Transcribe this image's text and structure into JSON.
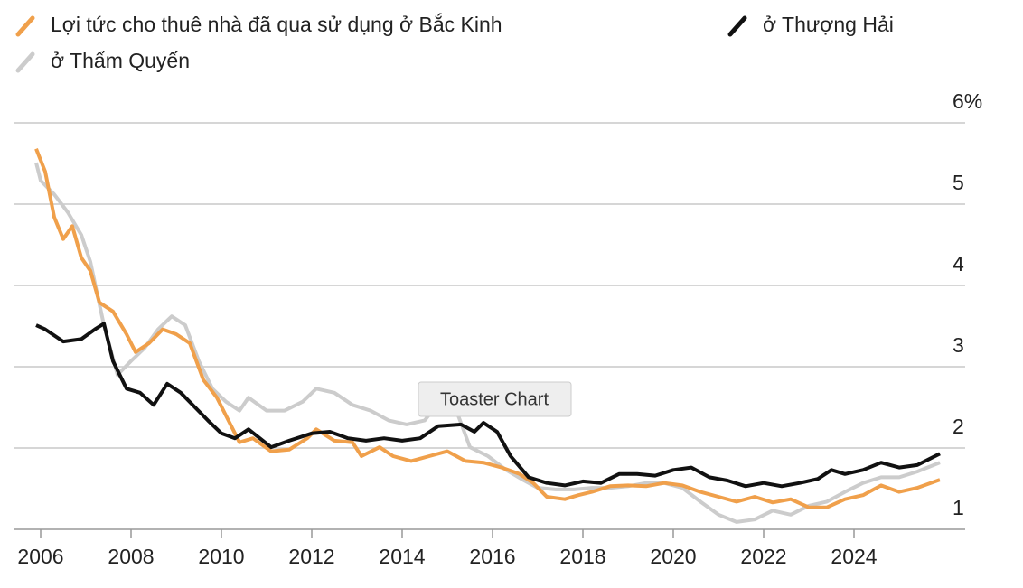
{
  "chart_data": {
    "type": "line",
    "series": [
      {
        "name": "Lợi tức cho thuê nhà đã qua sử dụng ở Bắc Kinh",
        "color": "#f0a04b",
        "x": [
          2005.9,
          2006.1,
          2006.3,
          2006.5,
          2006.7,
          2006.9,
          2007.1,
          2007.3,
          2007.6,
          2007.9,
          2008.1,
          2008.4,
          2008.7,
          2009.0,
          2009.3,
          2009.6,
          2009.9,
          2010.2,
          2010.4,
          2010.7,
          2011.1,
          2011.5,
          2011.9,
          2012.1,
          2012.5,
          2012.9,
          2013.1,
          2013.5,
          2013.8,
          2014.2,
          2014.6,
          2015.0,
          2015.4,
          2015.8,
          2016.2,
          2016.6,
          2016.9,
          2017.2,
          2017.6,
          2017.9,
          2018.2,
          2018.6,
          2019.0,
          2019.4,
          2019.8,
          2020.2,
          2020.6,
          2021.0,
          2021.4,
          2021.8,
          2022.2,
          2022.6,
          2023.0,
          2023.4,
          2023.8,
          2024.2,
          2024.6,
          2025.0,
          2025.4,
          2025.9
        ],
        "values": [
          5.68,
          5.4,
          4.84,
          4.57,
          4.73,
          4.34,
          4.18,
          3.79,
          3.68,
          3.4,
          3.18,
          3.29,
          3.46,
          3.4,
          3.29,
          2.84,
          2.62,
          2.29,
          2.07,
          2.12,
          1.96,
          1.98,
          2.12,
          2.23,
          2.09,
          2.07,
          1.9,
          2.01,
          1.9,
          1.84,
          1.9,
          1.96,
          1.84,
          1.82,
          1.76,
          1.68,
          1.57,
          1.4,
          1.37,
          1.42,
          1.46,
          1.53,
          1.54,
          1.53,
          1.57,
          1.54,
          1.46,
          1.4,
          1.34,
          1.4,
          1.33,
          1.37,
          1.27,
          1.27,
          1.37,
          1.42,
          1.54,
          1.46,
          1.51,
          1.61
        ]
      },
      {
        "name": "ở Thượng Hải",
        "color": "#111111",
        "x": [
          2005.9,
          2006.1,
          2006.5,
          2006.9,
          2007.2,
          2007.4,
          2007.6,
          2007.9,
          2008.2,
          2008.5,
          2008.8,
          2009.1,
          2009.4,
          2009.7,
          2010.0,
          2010.3,
          2010.6,
          2011.1,
          2011.5,
          2012.0,
          2012.4,
          2012.8,
          2013.2,
          2013.6,
          2014.0,
          2014.4,
          2014.8,
          2015.3,
          2015.6,
          2015.8,
          2016.1,
          2016.4,
          2016.8,
          2017.2,
          2017.6,
          2018.0,
          2018.4,
          2018.8,
          2019.2,
          2019.6,
          2020.0,
          2020.4,
          2020.8,
          2021.2,
          2021.6,
          2022.0,
          2022.4,
          2022.8,
          2023.2,
          2023.5,
          2023.8,
          2024.2,
          2024.6,
          2025.0,
          2025.4,
          2025.9
        ],
        "values": [
          3.51,
          3.46,
          3.31,
          3.34,
          3.46,
          3.53,
          3.07,
          2.73,
          2.68,
          2.53,
          2.79,
          2.68,
          2.51,
          2.34,
          2.18,
          2.12,
          2.23,
          2.01,
          2.09,
          2.18,
          2.2,
          2.12,
          2.09,
          2.12,
          2.09,
          2.12,
          2.27,
          2.29,
          2.2,
          2.31,
          2.2,
          1.9,
          1.64,
          1.57,
          1.54,
          1.59,
          1.57,
          1.68,
          1.68,
          1.66,
          1.73,
          1.76,
          1.64,
          1.6,
          1.53,
          1.57,
          1.53,
          1.57,
          1.62,
          1.73,
          1.68,
          1.73,
          1.82,
          1.76,
          1.79,
          1.93
        ]
      },
      {
        "name": "ở Thẩm Quyến",
        "color": "#cccccc",
        "x": [
          2005.9,
          2006.0,
          2006.3,
          2006.6,
          2006.9,
          2007.1,
          2007.4,
          2007.7,
          2008.0,
          2008.3,
          2008.6,
          2008.9,
          2009.2,
          2009.5,
          2009.8,
          2010.1,
          2010.4,
          2010.6,
          2011.0,
          2011.4,
          2011.8,
          2012.1,
          2012.5,
          2012.9,
          2013.3,
          2013.7,
          2014.1,
          2014.5,
          2014.9,
          2015.2,
          2015.5,
          2015.9,
          2016.3,
          2016.7,
          2017.0,
          2017.4,
          2017.8,
          2018.2,
          2018.6,
          2019.0,
          2019.4,
          2019.8,
          2020.2,
          2020.6,
          2021.0,
          2021.4,
          2021.8,
          2022.2,
          2022.6,
          2023.0,
          2023.4,
          2023.8,
          2024.2,
          2024.6,
          2025.0,
          2025.4,
          2025.9
        ],
        "values": [
          5.51,
          5.29,
          5.12,
          4.9,
          4.62,
          4.29,
          3.51,
          2.9,
          3.07,
          3.23,
          3.46,
          3.62,
          3.51,
          3.07,
          2.73,
          2.57,
          2.46,
          2.62,
          2.46,
          2.46,
          2.57,
          2.73,
          2.68,
          2.53,
          2.46,
          2.34,
          2.29,
          2.34,
          2.62,
          2.46,
          2.01,
          1.9,
          1.73,
          1.6,
          1.51,
          1.49,
          1.49,
          1.51,
          1.51,
          1.53,
          1.57,
          1.57,
          1.51,
          1.34,
          1.18,
          1.09,
          1.12,
          1.23,
          1.18,
          1.29,
          1.34,
          1.46,
          1.57,
          1.64,
          1.64,
          1.71,
          1.82
        ]
      }
    ],
    "xlim": [
      2005.4,
      2026.46
    ],
    "xticks": [
      2006,
      2008,
      2010,
      2012,
      2014,
      2016,
      2018,
      2020,
      2022,
      2024
    ],
    "ylim": [
      1,
      6
    ],
    "yticks": [
      1,
      2,
      3,
      4,
      5,
      {
        "value": 6,
        "label": "6%"
      }
    ],
    "grid": true,
    "tooltip": "Toaster Chart"
  }
}
